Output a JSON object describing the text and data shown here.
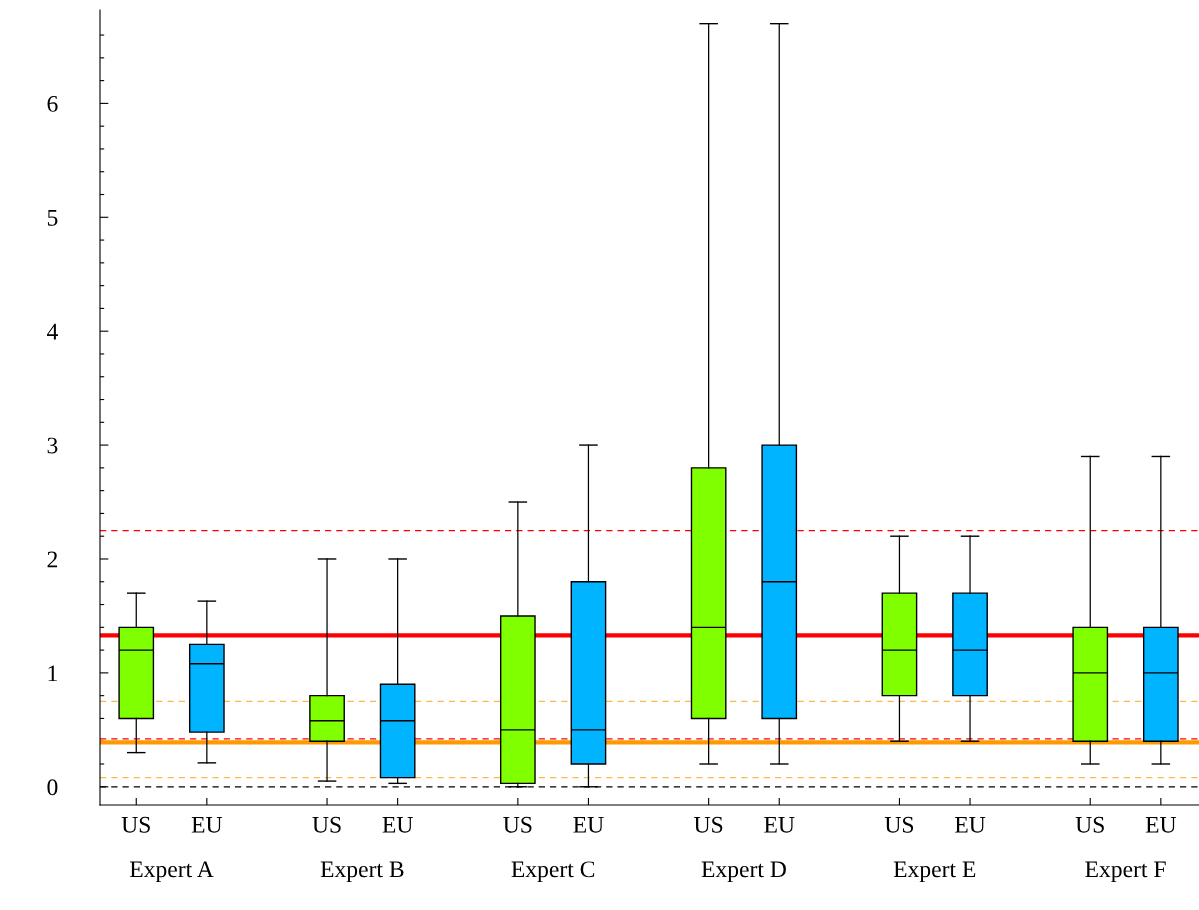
{
  "chart_data": {
    "type": "box",
    "categories": [
      "Expert A",
      "Expert B",
      "Expert C",
      "Expert D",
      "Expert E",
      "Expert F"
    ],
    "series": [
      {
        "name": "US",
        "color": "#80ff00",
        "boxes": [
          {
            "low": 0.3,
            "q1": 0.6,
            "median": 1.2,
            "q3": 1.4,
            "high": 1.7
          },
          {
            "low": 0.05,
            "q1": 0.4,
            "median": 0.58,
            "q3": 0.8,
            "high": 2.0
          },
          {
            "low": 0.0,
            "q1": 0.03,
            "median": 0.5,
            "q3": 1.5,
            "high": 2.5
          },
          {
            "low": 0.2,
            "q1": 0.6,
            "median": 1.4,
            "q3": 2.8,
            "high": 6.7
          },
          {
            "low": 0.4,
            "q1": 0.8,
            "median": 1.2,
            "q3": 1.7,
            "high": 2.2
          },
          {
            "low": 0.2,
            "q1": 0.4,
            "median": 1.0,
            "q3": 1.4,
            "high": 2.9
          }
        ]
      },
      {
        "name": "EU",
        "color": "#00b4ff",
        "boxes": [
          {
            "low": 0.21,
            "q1": 0.48,
            "median": 1.08,
            "q3": 1.25,
            "high": 1.63
          },
          {
            "low": 0.03,
            "q1": 0.08,
            "median": 0.58,
            "q3": 0.9,
            "high": 2.0
          },
          {
            "low": 0.0,
            "q1": 0.2,
            "median": 0.5,
            "q3": 1.8,
            "high": 3.0
          },
          {
            "low": 0.2,
            "q1": 0.6,
            "median": 1.8,
            "q3": 3.0,
            "high": 6.7
          },
          {
            "low": 0.4,
            "q1": 0.8,
            "median": 1.2,
            "q3": 1.7,
            "high": 2.2
          },
          {
            "low": 0.2,
            "q1": 0.4,
            "median": 1.0,
            "q3": 1.4,
            "high": 2.9
          }
        ]
      }
    ],
    "ylim": [
      -0.16,
      6.82
    ],
    "yticks": [
      0,
      {
        "value": 0.2,
        "label": null
      },
      {
        "value": 0.4,
        "label": null
      },
      {
        "value": 0.6,
        "label": null
      },
      {
        "value": 0.8,
        "label": null
      },
      1,
      {
        "value": 1.2,
        "label": null
      },
      {
        "value": 1.4,
        "label": null
      },
      {
        "value": 1.6,
        "label": null
      },
      {
        "value": 1.8,
        "label": null
      },
      2,
      {
        "value": 2.2,
        "label": null
      },
      {
        "value": 2.4,
        "label": null
      },
      {
        "value": 2.6,
        "label": null
      },
      {
        "value": 2.8,
        "label": null
      },
      3,
      {
        "value": 3.2,
        "label": null
      },
      {
        "value": 3.4,
        "label": null
      },
      {
        "value": 3.6,
        "label": null
      },
      {
        "value": 3.8,
        "label": null
      },
      4,
      {
        "value": 4.2,
        "label": null
      },
      {
        "value": 4.4,
        "label": null
      },
      {
        "value": 4.6,
        "label": null
      },
      {
        "value": 4.8,
        "label": null
      },
      5,
      {
        "value": 5.2,
        "label": null
      },
      {
        "value": 5.4,
        "label": null
      },
      {
        "value": 5.6,
        "label": null
      },
      {
        "value": 5.8,
        "label": null
      },
      6,
      {
        "value": 6.2,
        "label": null
      },
      {
        "value": 6.4,
        "label": null
      },
      {
        "value": 6.6,
        "label": null
      }
    ],
    "ref_lines": [
      {
        "axis": "y",
        "value": 0,
        "color": "#000000",
        "line_style": "dashed"
      },
      {
        "axis": "y",
        "value": 0.08,
        "color": "#ffb84d",
        "line_style": "dashed"
      },
      {
        "axis": "y",
        "value": 0.39,
        "color": "#ff9900",
        "line_style": "solid"
      },
      {
        "axis": "y",
        "value": 0.42,
        "color": "#ff0000",
        "line_style": "dashed"
      },
      {
        "axis": "y",
        "value": 0.75,
        "color": "#ffb84d",
        "line_style": "dashed"
      },
      {
        "axis": "y",
        "value": 1.33,
        "color": "#ff0000",
        "line_style": "solid"
      },
      {
        "axis": "y",
        "value": 2.25,
        "color": "#ff0000",
        "line_style": "dashed"
      }
    ],
    "grid": false,
    "legend": "bottom"
  }
}
